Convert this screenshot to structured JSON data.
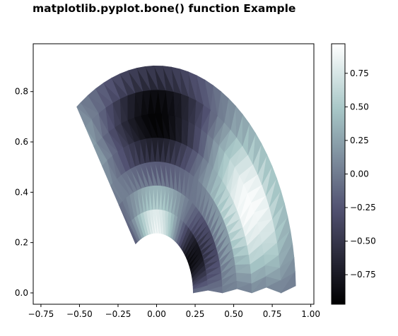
{
  "chart_data": {
    "type": "tripcolor",
    "title": "matplotlib.pyplot.bone() function Example",
    "colormap": "bone",
    "xlabel": "",
    "ylabel": "",
    "xlim": [
      -0.8,
      1.02
    ],
    "ylim": [
      -0.045,
      0.99
    ],
    "xticks": [
      -0.75,
      -0.5,
      -0.25,
      0.0,
      0.25,
      0.5,
      0.75,
      1.0
    ],
    "xtick_labels": [
      "−0.75",
      "−0.50",
      "−0.25",
      "0.00",
      "0.25",
      "0.50",
      "0.75",
      "1.00"
    ],
    "yticks": [
      0.0,
      0.2,
      0.4,
      0.6,
      0.8
    ],
    "ytick_labels": [
      "0.0",
      "0.2",
      "0.4",
      "0.6",
      "0.8"
    ],
    "triangulation": {
      "n_radii": 8,
      "n_angles": 36,
      "min_radius": 0.25,
      "outer_radius": 0.95,
      "inner_circle_center": [
        0,
        0
      ],
      "value_function": "cos(3*angle) * cos(6*radius)",
      "angle_sector_deg": [
        0,
        125
      ]
    },
    "colorbar": {
      "vmin": -0.97,
      "vmax": 0.97,
      "ticks": [
        -0.75,
        -0.5,
        -0.25,
        0.0,
        0.25,
        0.5,
        0.75
      ],
      "tick_labels": [
        "−0.75",
        "−0.50",
        "−0.25",
        "0.00",
        "0.25",
        "0.50",
        "0.75"
      ]
    }
  }
}
